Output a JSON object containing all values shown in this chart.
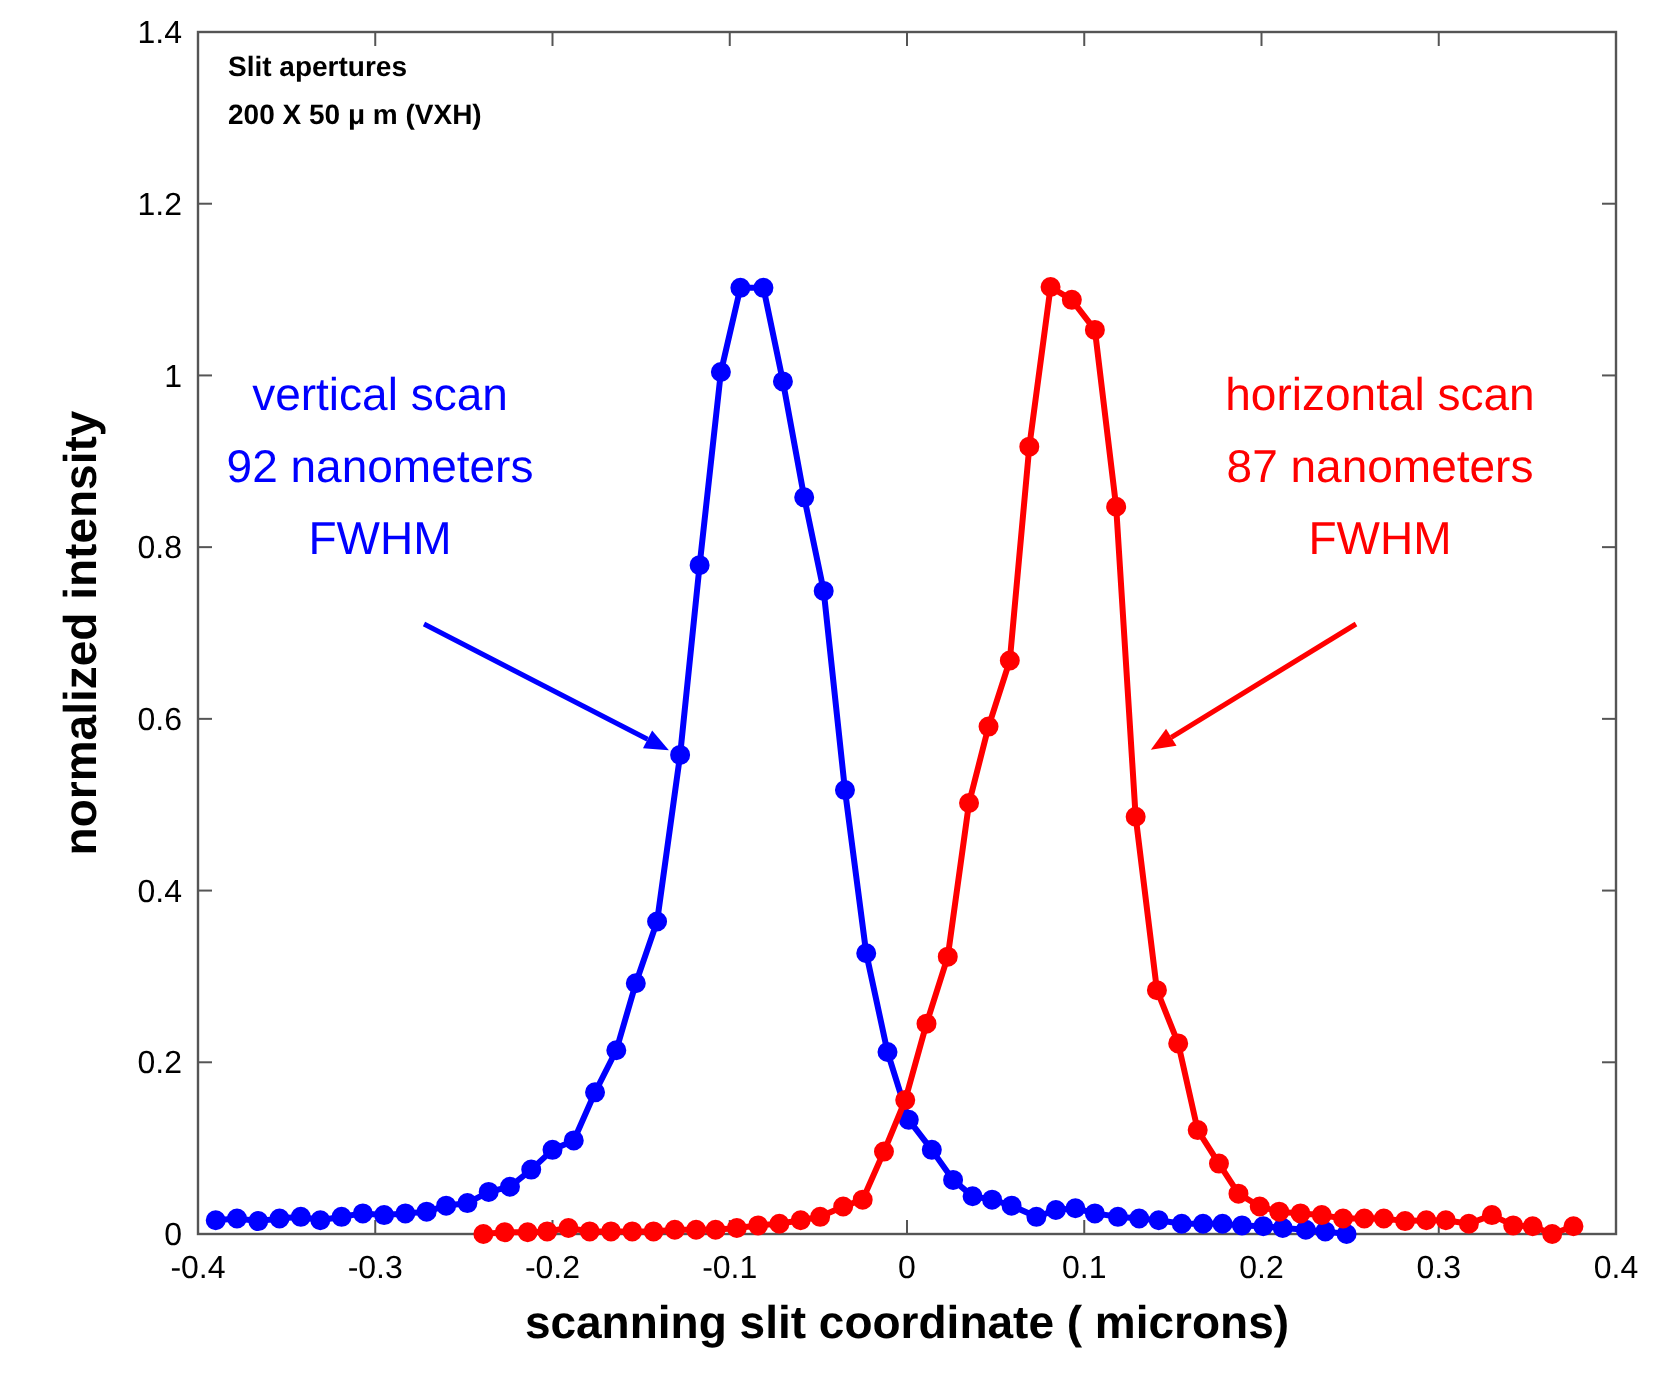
{
  "chart_data": {
    "type": "line",
    "xlabel": "scanning slit coordinate ( microns)",
    "ylabel": "normalized intensity",
    "xlim": [
      -0.4,
      0.4
    ],
    "xticks": [
      -0.4,
      -0.3,
      -0.2,
      -0.1,
      0,
      0.1,
      0.2,
      0.3,
      0.4
    ],
    "ylim": [
      0,
      1.4
    ],
    "yticks": [
      0,
      0.2,
      0.4,
      0.6,
      0.8,
      1,
      1.2,
      1.4
    ],
    "marker": "circle",
    "line_style": "solid",
    "grid": false,
    "annotations": [
      "Slit apertures",
      "200 X 50 μ m (VXH)",
      "vertical scan\n92 nanometers\nFWHM",
      "horizontal scan\n87 nanometers\nFWHM"
    ],
    "series": [
      {
        "color": "#0000ff",
        "x": [
          -0.39,
          -0.378,
          -0.366,
          -0.354,
          -0.342,
          -0.331,
          -0.319,
          -0.307,
          -0.295,
          -0.283,
          -0.271,
          -0.26,
          -0.248,
          -0.236,
          -0.224,
          -0.212,
          -0.2,
          -0.188,
          -0.176,
          -0.164,
          -0.153,
          -0.141,
          -0.128,
          -0.117,
          -0.105,
          -0.094,
          -0.081,
          -0.07,
          -0.058,
          -0.047,
          -0.035,
          -0.023,
          -0.011,
          0.001,
          0.014,
          0.026,
          0.037,
          0.048,
          0.059,
          0.073,
          0.084,
          0.095,
          0.106,
          0.119,
          0.131,
          0.142,
          0.155,
          0.167,
          0.178,
          0.189,
          0.201,
          0.212,
          0.225,
          0.236,
          0.248
        ],
        "values": [
          0.016,
          0.018,
          0.015,
          0.018,
          0.02,
          0.016,
          0.02,
          0.024,
          0.022,
          0.024,
          0.026,
          0.033,
          0.036,
          0.049,
          0.055,
          0.075,
          0.098,
          0.109,
          0.165,
          0.214,
          0.292,
          0.364,
          0.558,
          0.779,
          1.004,
          1.102,
          1.102,
          0.993,
          0.858,
          0.749,
          0.517,
          0.327,
          0.212,
          0.133,
          0.098,
          0.063,
          0.044,
          0.04,
          0.033,
          0.02,
          0.028,
          0.03,
          0.024,
          0.02,
          0.018,
          0.016,
          0.012,
          0.012,
          0.012,
          0.01,
          0.009,
          0.007,
          0.005,
          0.003,
          0
        ]
      },
      {
        "color": "#ff0000",
        "x": [
          -0.239,
          -0.227,
          -0.214,
          -0.203,
          -0.191,
          -0.179,
          -0.167,
          -0.155,
          -0.143,
          -0.131,
          -0.119,
          -0.108,
          -0.096,
          -0.084,
          -0.072,
          -0.06,
          -0.049,
          -0.036,
          -0.025,
          -0.013,
          -0.001,
          0.011,
          0.023,
          0.035,
          0.046,
          0.058,
          0.069,
          0.081,
          0.093,
          0.106,
          0.118,
          0.129,
          0.141,
          0.153,
          0.164,
          0.176,
          0.187,
          0.199,
          0.21,
          0.222,
          0.234,
          0.246,
          0.258,
          0.269,
          0.281,
          0.293,
          0.304,
          0.317,
          0.33,
          0.342,
          0.353,
          0.364,
          0.376
        ],
        "values": [
          0,
          0.002,
          0.002,
          0.003,
          0.007,
          0.003,
          0.003,
          0.003,
          0.003,
          0.005,
          0.005,
          0.005,
          0.007,
          0.01,
          0.012,
          0.016,
          0.02,
          0.032,
          0.04,
          0.096,
          0.156,
          0.245,
          0.323,
          0.502,
          0.591,
          0.668,
          0.917,
          1.103,
          1.088,
          1.053,
          0.847,
          0.486,
          0.284,
          0.222,
          0.121,
          0.082,
          0.047,
          0.032,
          0.026,
          0.024,
          0.022,
          0.018,
          0.018,
          0.018,
          0.015,
          0.016,
          0.016,
          0.012,
          0.022,
          0.01,
          0.009,
          0,
          0.009
        ]
      }
    ]
  }
}
